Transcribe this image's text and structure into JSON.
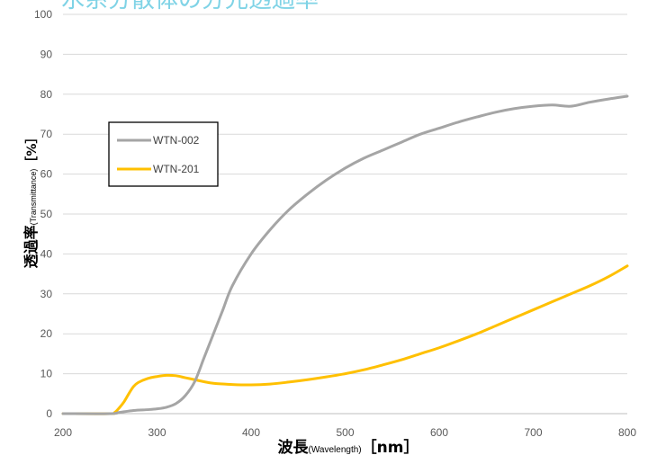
{
  "chart_data": {
    "type": "line",
    "title": "水系分散体の分光透過率",
    "xlabel": {
      "main": "波長",
      "sub": "(Wavelength)",
      "unit": "［nm］"
    },
    "ylabel": {
      "main": "透過率",
      "sub": "(Transmittance)",
      "unit": "［%］"
    },
    "xlim": [
      200,
      800
    ],
    "ylim": [
      0,
      100
    ],
    "x_ticks": [
      200,
      300,
      400,
      500,
      600,
      700,
      800
    ],
    "y_ticks": [
      0,
      10,
      20,
      30,
      40,
      50,
      60,
      70,
      80,
      90,
      100
    ],
    "grid": "horizontal",
    "legend_position": "upper-left",
    "series": [
      {
        "name": "WTN-002",
        "color": "#a5a5a5",
        "points": [
          [
            200,
            0
          ],
          [
            250,
            0
          ],
          [
            260,
            0.3
          ],
          [
            275,
            0.8
          ],
          [
            290,
            1.0
          ],
          [
            300,
            1.2
          ],
          [
            310,
            1.6
          ],
          [
            320,
            2.5
          ],
          [
            330,
            4.5
          ],
          [
            340,
            8
          ],
          [
            350,
            14
          ],
          [
            360,
            20
          ],
          [
            370,
            26
          ],
          [
            380,
            32
          ],
          [
            400,
            40
          ],
          [
            420,
            46
          ],
          [
            440,
            51
          ],
          [
            460,
            55
          ],
          [
            480,
            58.5
          ],
          [
            500,
            61.5
          ],
          [
            520,
            64
          ],
          [
            540,
            66
          ],
          [
            560,
            68
          ],
          [
            580,
            70
          ],
          [
            600,
            71.5
          ],
          [
            620,
            73
          ],
          [
            640,
            74.3
          ],
          [
            660,
            75.5
          ],
          [
            680,
            76.4
          ],
          [
            700,
            77
          ],
          [
            720,
            77.3
          ],
          [
            740,
            77
          ],
          [
            760,
            78
          ],
          [
            780,
            78.8
          ],
          [
            800,
            79.5
          ]
        ]
      },
      {
        "name": "WTN-201",
        "color": "#ffc000",
        "points": [
          [
            200,
            0
          ],
          [
            250,
            0
          ],
          [
            255,
            0.3
          ],
          [
            260,
            1.5
          ],
          [
            265,
            3
          ],
          [
            270,
            5
          ],
          [
            275,
            6.8
          ],
          [
            280,
            7.8
          ],
          [
            290,
            8.8
          ],
          [
            300,
            9.3
          ],
          [
            310,
            9.6
          ],
          [
            320,
            9.5
          ],
          [
            330,
            9.0
          ],
          [
            340,
            8.5
          ],
          [
            350,
            8
          ],
          [
            360,
            7.6
          ],
          [
            380,
            7.3
          ],
          [
            400,
            7.2
          ],
          [
            420,
            7.4
          ],
          [
            440,
            7.9
          ],
          [
            460,
            8.5
          ],
          [
            480,
            9.2
          ],
          [
            500,
            10
          ],
          [
            520,
            11
          ],
          [
            540,
            12.2
          ],
          [
            560,
            13.5
          ],
          [
            580,
            15
          ],
          [
            600,
            16.5
          ],
          [
            620,
            18.2
          ],
          [
            640,
            20
          ],
          [
            660,
            22
          ],
          [
            680,
            24
          ],
          [
            700,
            26
          ],
          [
            720,
            28
          ],
          [
            740,
            30
          ],
          [
            760,
            32
          ],
          [
            780,
            34.3
          ],
          [
            800,
            37
          ]
        ]
      }
    ]
  }
}
